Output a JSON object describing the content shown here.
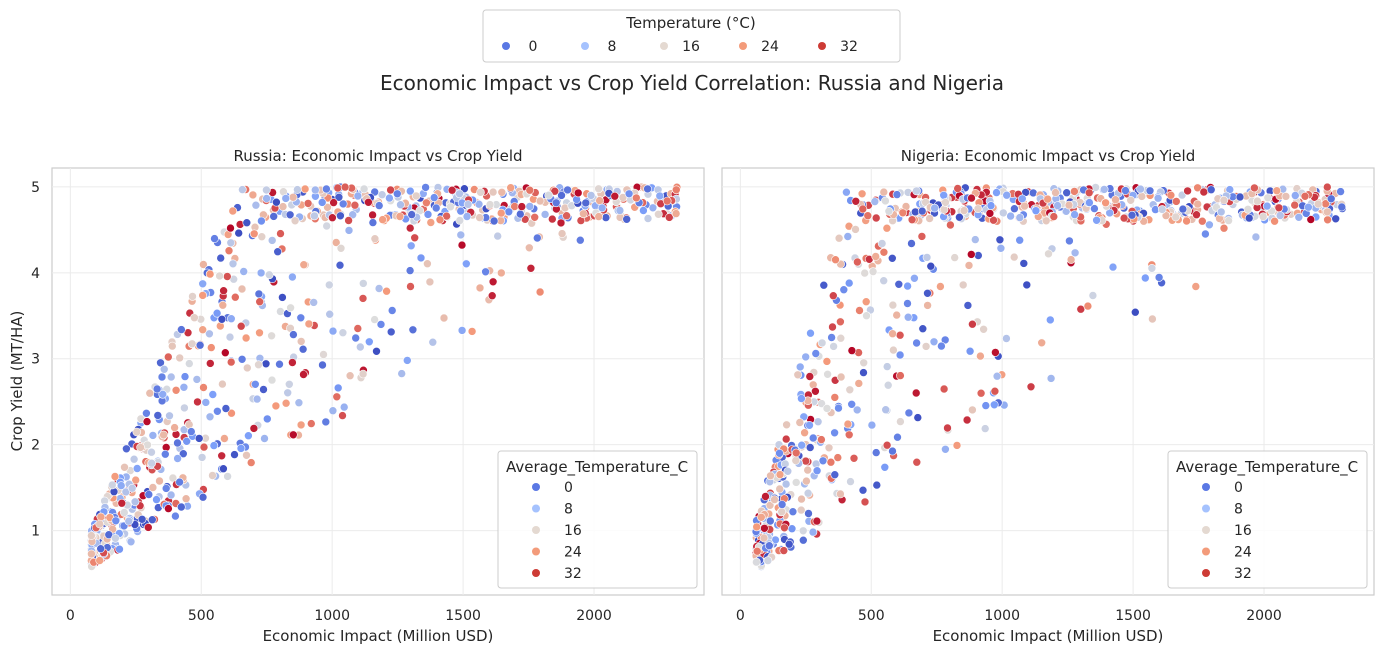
{
  "figure": {
    "suptitle": "Economic Impact vs Crop Yield Correlation: Russia and Nigeria",
    "top_legend": {
      "title": "Temperature (°C)",
      "entries": [
        {
          "label": "0",
          "color": "#5a78e4"
        },
        {
          "label": "8",
          "color": "#a5c2fe"
        },
        {
          "label": "16",
          "color": "#e4d9d1"
        },
        {
          "label": "24",
          "color": "#f39b7a"
        },
        {
          "label": "32",
          "color": "#cd3b35"
        }
      ]
    }
  },
  "chart_data": [
    {
      "type": "scatter",
      "title": "Russia: Economic Impact vs Crop Yield",
      "xlabel": "Economic Impact (Million USD)",
      "ylabel": "Crop Yield (MT/HA)",
      "xlim": [
        -70,
        2420
      ],
      "ylim": [
        0.25,
        5.22
      ],
      "xticks": [
        0,
        500,
        1000,
        1500,
        2000
      ],
      "yticks": [
        1,
        2,
        3,
        4,
        5
      ],
      "grid": true,
      "legend": {
        "title": "Average_Temperature_C",
        "position": "lower right",
        "entries": [
          "0",
          "8",
          "16",
          "24",
          "32"
        ]
      },
      "hue_variable": "Average_Temperature_C",
      "color_scale": {
        "min": -5,
        "max": 35,
        "palette": "coolwarm"
      },
      "cloud": {
        "n": 900,
        "x_range": [
          80,
          2320
        ],
        "slope_range": [
          0.0019,
          0.0072
        ],
        "intercept": 0.42
      }
    },
    {
      "type": "scatter",
      "title": "Nigeria: Economic Impact vs Crop Yield",
      "xlabel": "Economic Impact (Million USD)",
      "ylabel": "",
      "xlim": [
        -70,
        2420
      ],
      "ylim": [
        0.25,
        5.22
      ],
      "xticks": [
        0,
        500,
        1000,
        1500,
        2000
      ],
      "yticks": [
        1,
        2,
        3,
        4,
        5
      ],
      "grid": true,
      "legend": {
        "title": "Average_Temperature_C",
        "position": "lower right",
        "entries": [
          "0",
          "8",
          "16",
          "24",
          "32"
        ]
      },
      "hue_variable": "Average_Temperature_C",
      "color_scale": {
        "min": -5,
        "max": 35,
        "palette": "coolwarm"
      },
      "cloud": {
        "n": 900,
        "x_range": [
          60,
          2300
        ],
        "slope_range": [
          0.0019,
          0.011
        ],
        "intercept": 0.42
      }
    }
  ]
}
